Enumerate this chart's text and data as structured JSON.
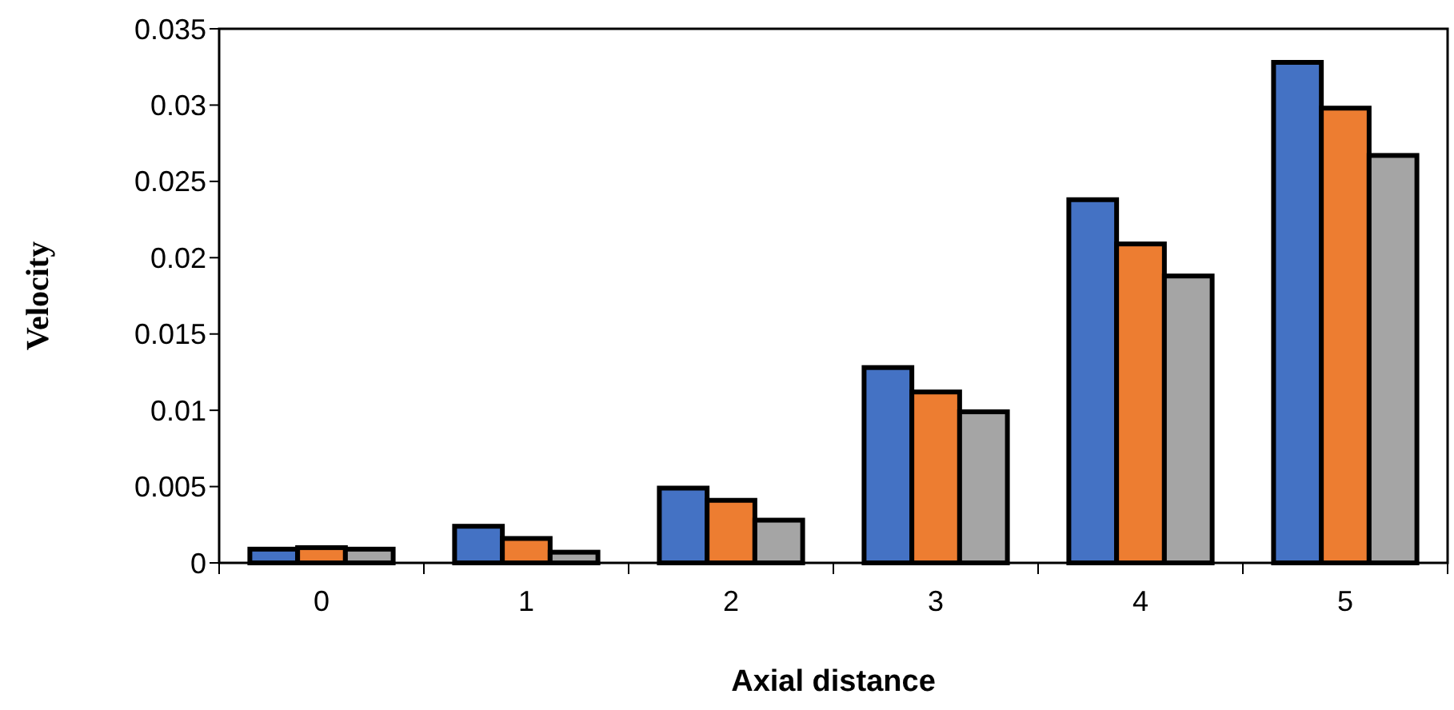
{
  "chart_data": {
    "type": "bar",
    "xlabel": "Axial distance",
    "ylabel": "Velocity",
    "categories": [
      "0",
      "1",
      "2",
      "3",
      "4",
      "5"
    ],
    "series": [
      {
        "color": "#4472c4",
        "values": [
          0.0009,
          0.0024,
          0.0049,
          0.0128,
          0.0238,
          0.0328
        ]
      },
      {
        "color": "#ed7d31",
        "values": [
          0.001,
          0.0016,
          0.0041,
          0.0112,
          0.0209,
          0.0298
        ]
      },
      {
        "color": "#a5a5a5",
        "values": [
          0.0009,
          0.0007,
          0.0028,
          0.0099,
          0.0188,
          0.0267
        ]
      }
    ],
    "ylim": [
      0,
      0.035
    ],
    "yticks": [
      0,
      0.005,
      0.01,
      0.015,
      0.02,
      0.025,
      0.03,
      0.035
    ],
    "grid": false
  }
}
